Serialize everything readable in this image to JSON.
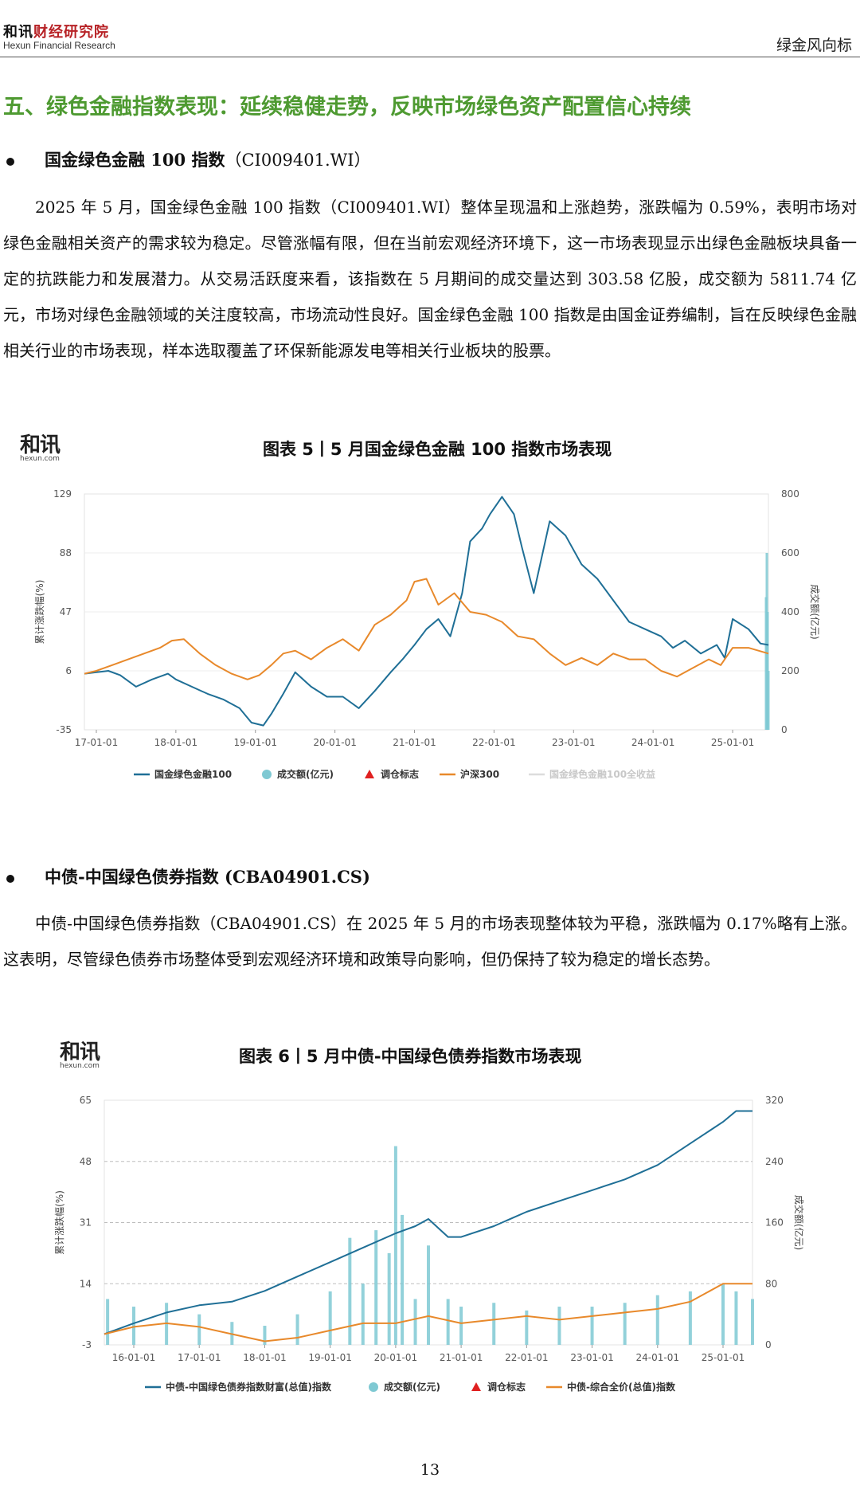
{
  "header": {
    "logo_part1": "和讯",
    "logo_part2": "财经研究院",
    "logo_sub": "Hexun Financial Research",
    "brand_right": "绿金风向标"
  },
  "section_title": "五、绿色金融指数表现：延续稳健走势，反映市场绿色资产配置信心持续",
  "bullet1": {
    "name": "国金绿色金融 100 指数",
    "code": "（CI009401.WI）"
  },
  "paragraph1": "2025 年 5 月，国金绿色金融 100 指数（CI009401.WI）整体呈现温和上涨趋势，涨跌幅为 0.59%，表明市场对绿色金融相关资产的需求较为稳定。尽管涨幅有限，但在当前宏观经济环境下，这一市场表现显示出绿色金融板块具备一定的抗跌能力和发展潜力。从交易活跃度来看，该指数在 5 月期间的成交量达到 303.58 亿股，成交额为 5811.74 亿元，市场对绿色金融领域的关注度较高，市场流动性良好。国金绿色金融 100 指数是由国金证券编制，旨在反映绿色金融相关行业的市场表现，样本选取覆盖了环保新能源发电等相关行业板块的股票。",
  "chart1": {
    "logo_big": "和讯",
    "logo_small": "hexun.com",
    "title": "图表 5丨5 月国金绿色金融 100 指数市场表现"
  },
  "bullet2": {
    "name": "中债-中国绿色债券指数 (CBA04901.CS)"
  },
  "paragraph2": "中债-中国绿色债券指数（CBA04901.CS）在 2025 年 5 月的市场表现整体较为平稳，涨跌幅为 0.17%略有上涨。这表明，尽管绿色债券市场整体受到宏观经济环境和政策导向影响，但仍保持了较为稳定的增长态势。",
  "chart2": {
    "logo_big": "和讯",
    "logo_small": "hexun.com",
    "title": "图表 6丨5 月中债-中国绿色债券指数市场表现"
  },
  "page_number": "13",
  "colors": {
    "accent_green": "#4e9a31",
    "line_blue": "#1f6f96",
    "line_orange": "#e8892b",
    "volume_teal": "#7fc9d3",
    "marker_red": "#e02020"
  },
  "chart_data": [
    {
      "type": "line",
      "title": "图表 5丨5 月国金绿色金融 100 指数市场表现",
      "ylabel": "累计涨跌幅(%)",
      "y2label": "成交额(亿元)",
      "yticks": [
        "129",
        "88",
        "47",
        "6",
        "-35"
      ],
      "ylim": [
        -35,
        129
      ],
      "y2ticks": [
        "800",
        "600",
        "400",
        "200",
        "0"
      ],
      "y2lim": [
        0,
        800
      ],
      "xticks": [
        "17-01-01",
        "18-01-01",
        "19-01-01",
        "20-01-01",
        "21-01-01",
        "22-01-01",
        "23-01-01",
        "24-01-01",
        "25-01-01"
      ],
      "xlim": [
        2016.85,
        2025.45
      ],
      "grid": true,
      "legend_position": "bottom",
      "legend": [
        {
          "name": "国金绿色金融100",
          "marker": "line",
          "color": "#1f6f96"
        },
        {
          "name": "成交额(亿元)",
          "marker": "dot",
          "color": "#7fc9d3"
        },
        {
          "name": "调仓标志",
          "marker": "triangle",
          "color": "#e02020"
        },
        {
          "name": "沪深300",
          "marker": "line",
          "color": "#e8892b"
        },
        {
          "name": "国金绿色金融100全收益",
          "marker": "line",
          "color": "#dcdcdc"
        }
      ],
      "series": [
        {
          "name": "国金绿色金融100",
          "color": "#1f6f96",
          "x": [
            2016.85,
            2017.0,
            2017.15,
            2017.3,
            2017.5,
            2017.7,
            2017.9,
            2018.0,
            2018.2,
            2018.4,
            2018.6,
            2018.8,
            2018.95,
            2019.1,
            2019.2,
            2019.35,
            2019.5,
            2019.7,
            2019.9,
            2020.1,
            2020.3,
            2020.5,
            2020.7,
            2020.85,
            2021.0,
            2021.15,
            2021.3,
            2021.45,
            2021.6,
            2021.7,
            2021.85,
            2021.95,
            2022.1,
            2022.25,
            2022.35,
            2022.5,
            2022.7,
            2022.9,
            2023.1,
            2023.3,
            2023.5,
            2023.7,
            2023.9,
            2024.1,
            2024.25,
            2024.4,
            2024.6,
            2024.8,
            2024.9,
            2025.0,
            2025.2,
            2025.35,
            2025.45
          ],
          "values": [
            4,
            5,
            6,
            3,
            -5,
            0,
            4,
            0,
            -5,
            -10,
            -14,
            -20,
            -30,
            -32,
            -24,
            -10,
            5,
            -5,
            -12,
            -12,
            -20,
            -8,
            5,
            14,
            24,
            35,
            42,
            30,
            60,
            96,
            105,
            115,
            127,
            115,
            92,
            60,
            110,
            100,
            80,
            70,
            55,
            40,
            35,
            30,
            22,
            27,
            18,
            24,
            15,
            42,
            35,
            25,
            24
          ]
        },
        {
          "name": "沪深300",
          "color": "#e8892b",
          "x": [
            2016.85,
            2017.0,
            2017.2,
            2017.4,
            2017.6,
            2017.8,
            2017.95,
            2018.1,
            2018.3,
            2018.5,
            2018.7,
            2018.9,
            2019.05,
            2019.2,
            2019.35,
            2019.5,
            2019.7,
            2019.9,
            2020.1,
            2020.3,
            2020.5,
            2020.7,
            2020.9,
            2021.0,
            2021.15,
            2021.3,
            2021.5,
            2021.7,
            2021.9,
            2022.1,
            2022.3,
            2022.5,
            2022.7,
            2022.9,
            2023.1,
            2023.3,
            2023.5,
            2023.7,
            2023.9,
            2024.1,
            2024.3,
            2024.5,
            2024.7,
            2024.85,
            2025.0,
            2025.2,
            2025.45
          ],
          "values": [
            4,
            6,
            10,
            14,
            18,
            22,
            27,
            28,
            18,
            10,
            4,
            0,
            3,
            10,
            18,
            20,
            14,
            22,
            28,
            20,
            38,
            45,
            55,
            68,
            70,
            52,
            60,
            47,
            45,
            40,
            30,
            28,
            18,
            10,
            15,
            10,
            18,
            14,
            14,
            6,
            2,
            8,
            14,
            10,
            22,
            22,
            18
          ]
        }
      ],
      "volume_series": {
        "name": "成交额(亿元)",
        "color": "#7fc9d3",
        "x": [
          2025.42,
          2025.43,
          2025.44,
          2025.45
        ],
        "values": [
          450,
          600,
          400,
          200
        ]
      }
    },
    {
      "type": "line",
      "title": "图表 6丨5 月中债-中国绿色债券指数市场表现",
      "ylabel": "累计涨跌幅(%)",
      "y2label": "成交额(亿元)",
      "yticks": [
        "65",
        "48",
        "31",
        "14",
        "-3"
      ],
      "ylim": [
        -3,
        65
      ],
      "y2ticks": [
        "320",
        "240",
        "160",
        "80",
        "0"
      ],
      "y2lim": [
        0,
        320
      ],
      "xticks": [
        "16-01-01",
        "17-01-01",
        "18-01-01",
        "19-01-01",
        "20-01-01",
        "21-01-01",
        "22-01-01",
        "23-01-01",
        "24-01-01",
        "25-01-01"
      ],
      "xlim": [
        2015.55,
        2025.45
      ],
      "grid": true,
      "legend_position": "bottom",
      "legend": [
        {
          "name": "中债-中国绿色债券指数财富(总值)指数",
          "marker": "line",
          "color": "#1f6f96"
        },
        {
          "name": "成交额(亿元)",
          "marker": "dot",
          "color": "#7fc9d3"
        },
        {
          "name": "调仓标志",
          "marker": "triangle",
          "color": "#e02020"
        },
        {
          "name": "中债-综合全价(总值)指数",
          "marker": "line",
          "color": "#e8892b"
        }
      ],
      "series": [
        {
          "name": "中债-中国绿色债券指数财富(总值)指数",
          "color": "#1f6f96",
          "x": [
            2015.55,
            2016.0,
            2016.5,
            2017.0,
            2017.5,
            2018.0,
            2018.5,
            2019.0,
            2019.5,
            2020.0,
            2020.3,
            2020.5,
            2020.8,
            2021.0,
            2021.5,
            2022.0,
            2022.5,
            2023.0,
            2023.5,
            2024.0,
            2024.5,
            2025.0,
            2025.2,
            2025.45
          ],
          "values": [
            0,
            3,
            6,
            8,
            9,
            12,
            16,
            20,
            24,
            28,
            30,
            32,
            27,
            27,
            30,
            34,
            37,
            40,
            43,
            47,
            53,
            59,
            62,
            62
          ]
        },
        {
          "name": "中债-综合全价(总值)指数",
          "color": "#e8892b",
          "x": [
            2015.55,
            2016.0,
            2016.5,
            2017.0,
            2017.5,
            2018.0,
            2018.5,
            2019.0,
            2019.5,
            2020.0,
            2020.5,
            2021.0,
            2021.5,
            2022.0,
            2022.5,
            2023.0,
            2023.5,
            2024.0,
            2024.5,
            2025.0,
            2025.45
          ],
          "values": [
            0,
            2,
            3,
            2,
            0,
            -2,
            -1,
            1,
            3,
            3,
            5,
            3,
            4,
            5,
            4,
            5,
            6,
            7,
            9,
            14,
            14
          ]
        }
      ],
      "volume_series": {
        "name": "成交额(亿元)",
        "color": "#7fc9d3",
        "x": [
          2015.6,
          2016.0,
          2016.5,
          2017.0,
          2017.5,
          2018.0,
          2018.5,
          2019.0,
          2019.3,
          2019.5,
          2019.7,
          2019.9,
          2020.0,
          2020.1,
          2020.3,
          2020.5,
          2020.8,
          2021.0,
          2021.5,
          2022.0,
          2022.5,
          2023.0,
          2023.5,
          2024.0,
          2024.5,
          2025.0,
          2025.2,
          2025.45
        ],
        "values": [
          60,
          50,
          55,
          40,
          30,
          25,
          40,
          70,
          140,
          80,
          150,
          120,
          260,
          170,
          60,
          130,
          60,
          50,
          55,
          45,
          50,
          50,
          55,
          65,
          70,
          80,
          70,
          60
        ]
      }
    }
  ]
}
